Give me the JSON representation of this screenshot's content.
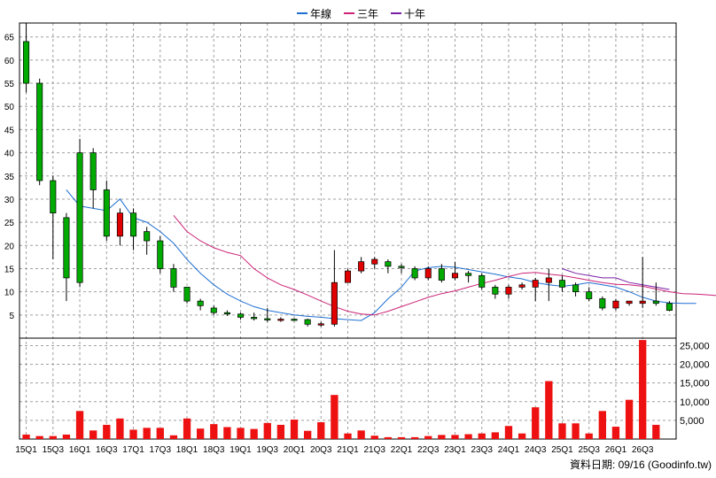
{
  "legend": {
    "items": [
      {
        "name": "年線",
        "color": "#1f6fd1"
      },
      {
        "name": "三年",
        "color": "#cc2277"
      },
      {
        "name": "十年",
        "color": "#7a1fa8"
      }
    ]
  },
  "source_note": "資料日期: 09/16  (Goodinfo.tw)",
  "chart_data": [
    {
      "type": "candlestick",
      "ylim": [
        0,
        68
      ],
      "yticks": [
        5,
        10,
        15,
        20,
        25,
        30,
        35,
        40,
        45,
        50,
        55,
        60,
        65
      ],
      "grid": true,
      "up_color": "#e00000",
      "down_color": "#00aa00",
      "candles": [
        [
          64,
          55,
          68,
          53
        ],
        [
          55,
          34,
          56,
          33
        ],
        [
          34,
          27,
          35,
          17
        ],
        [
          26,
          13,
          27,
          8
        ],
        [
          40,
          12,
          43,
          11
        ],
        [
          40,
          32,
          41,
          28
        ],
        [
          32,
          22,
          34,
          21
        ],
        [
          22,
          27,
          28,
          20
        ],
        [
          27,
          22,
          28,
          19
        ],
        [
          23,
          21,
          24,
          18
        ],
        [
          21,
          15,
          22,
          14
        ],
        [
          15,
          11,
          16,
          10
        ],
        [
          11,
          8,
          11,
          7.5
        ],
        [
          8,
          7,
          8.5,
          6
        ],
        [
          6.5,
          5.5,
          7,
          5
        ],
        [
          5.5,
          5.2,
          6,
          4.8
        ],
        [
          5.2,
          4.5,
          5.5,
          4
        ],
        [
          4.5,
          4.2,
          5.5,
          3.8
        ],
        [
          4.2,
          4,
          6.5,
          3.5
        ],
        [
          4,
          4.1,
          4.5,
          3.5
        ],
        [
          4.1,
          4,
          4.3,
          3.7
        ],
        [
          4,
          3,
          4.2,
          2.5
        ],
        [
          3,
          3.1,
          3.5,
          2.5
        ],
        [
          3,
          12,
          19,
          2.5
        ],
        [
          12,
          14.5,
          15,
          12
        ],
        [
          14.5,
          16.5,
          17.5,
          14
        ],
        [
          16,
          17,
          17.5,
          15
        ],
        [
          16.5,
          15.5,
          17,
          14
        ],
        [
          15.5,
          15.3,
          16,
          14
        ],
        [
          15,
          13,
          15.5,
          12.5
        ],
        [
          13,
          15,
          15.5,
          12.5
        ],
        [
          15,
          12.5,
          16,
          12
        ],
        [
          13,
          14,
          16.5,
          12.5
        ],
        [
          14,
          13.5,
          14.5,
          12
        ],
        [
          13.5,
          11,
          14,
          10.5
        ],
        [
          11,
          9.5,
          11.5,
          8.5
        ],
        [
          9.5,
          11,
          11.5,
          8.5
        ],
        [
          11,
          11.5,
          12,
          10.5
        ],
        [
          11,
          12.5,
          13,
          8
        ],
        [
          12,
          13,
          15,
          8
        ],
        [
          12.5,
          11,
          13.5,
          10
        ],
        [
          11.5,
          10,
          12,
          9
        ],
        [
          10,
          8.5,
          11,
          8
        ],
        [
          8.5,
          6.5,
          9,
          6
        ],
        [
          6.5,
          8,
          8.5,
          6
        ],
        [
          7.5,
          8,
          8,
          7
        ],
        [
          7.5,
          8,
          17.5,
          6.5
        ],
        [
          8,
          7.5,
          12,
          7
        ],
        [
          7.5,
          6,
          8,
          5.8
        ]
      ],
      "ma_series": [
        {
          "name": "年線",
          "start": 3,
          "values": [
            32,
            28.5,
            28,
            27.5,
            30,
            26,
            25,
            23,
            20.5,
            17,
            14,
            11.5,
            9.5,
            8,
            6.8,
            6,
            5.5,
            5,
            4.7,
            4.5,
            4.2,
            4,
            3.8,
            5.5,
            8.5,
            11,
            14.5,
            15.2,
            15.5,
            15.3,
            14.8,
            14.3,
            13.8,
            13.2,
            12.8,
            12,
            11.5,
            11.2,
            11.5,
            12,
            11.5,
            11,
            10,
            8.8,
            8,
            7.6,
            7.5,
            7.5
          ]
        },
        {
          "name": "三年",
          "start": 11,
          "values": [
            26.5,
            23,
            21,
            19.5,
            18.5,
            17.8,
            15,
            13,
            11.5,
            10.5,
            9.3,
            8,
            6.8,
            5.8,
            5.2,
            5,
            5.8,
            6.8,
            7.8,
            8.8,
            9.6,
            10.2,
            11,
            11.8,
            12.5,
            13.3,
            14,
            14.2,
            13.8,
            13.5,
            13,
            12.5,
            12,
            11.6,
            11.5,
            11.2,
            10.6,
            10,
            9.6,
            9.5,
            9.3,
            9.1
          ]
        },
        {
          "name": "十年",
          "start": 40,
          "values": [
            15,
            14,
            13.5,
            13,
            13,
            12,
            11.5,
            11,
            10.5
          ]
        }
      ]
    },
    {
      "type": "bar",
      "ylim": [
        0,
        27000
      ],
      "yticks": [
        5000,
        10000,
        15000,
        20000,
        25000
      ],
      "ytick_labels": [
        "5,000",
        "10,000",
        "15,000",
        "20,000",
        "25,000"
      ],
      "color": "#ee1111",
      "values": [
        1200,
        800,
        800,
        1200,
        7500,
        2300,
        3800,
        5500,
        2500,
        3000,
        3000,
        1000,
        5500,
        2800,
        4000,
        3200,
        3000,
        2700,
        4300,
        3800,
        5200,
        2200,
        4500,
        11800,
        1500,
        2300,
        900,
        500,
        500,
        500,
        800,
        1100,
        1100,
        1300,
        1500,
        1800,
        3500,
        1500,
        8500,
        15500,
        4200,
        4200,
        1500,
        7500,
        3300,
        10500,
        26500,
        3800
      ],
      "xtick_labels": [
        "15Q1",
        "15Q3",
        "16Q1",
        "16Q3",
        "17Q1",
        "17Q3",
        "18Q1",
        "18Q3",
        "19Q1",
        "19Q3",
        "20Q1",
        "20Q3",
        "21Q1",
        "21Q3",
        "22Q1",
        "22Q3",
        "23Q1",
        "23Q3",
        "24Q1",
        "24Q3",
        "25Q1",
        "25Q3",
        "26Q1",
        "26Q3"
      ]
    }
  ]
}
